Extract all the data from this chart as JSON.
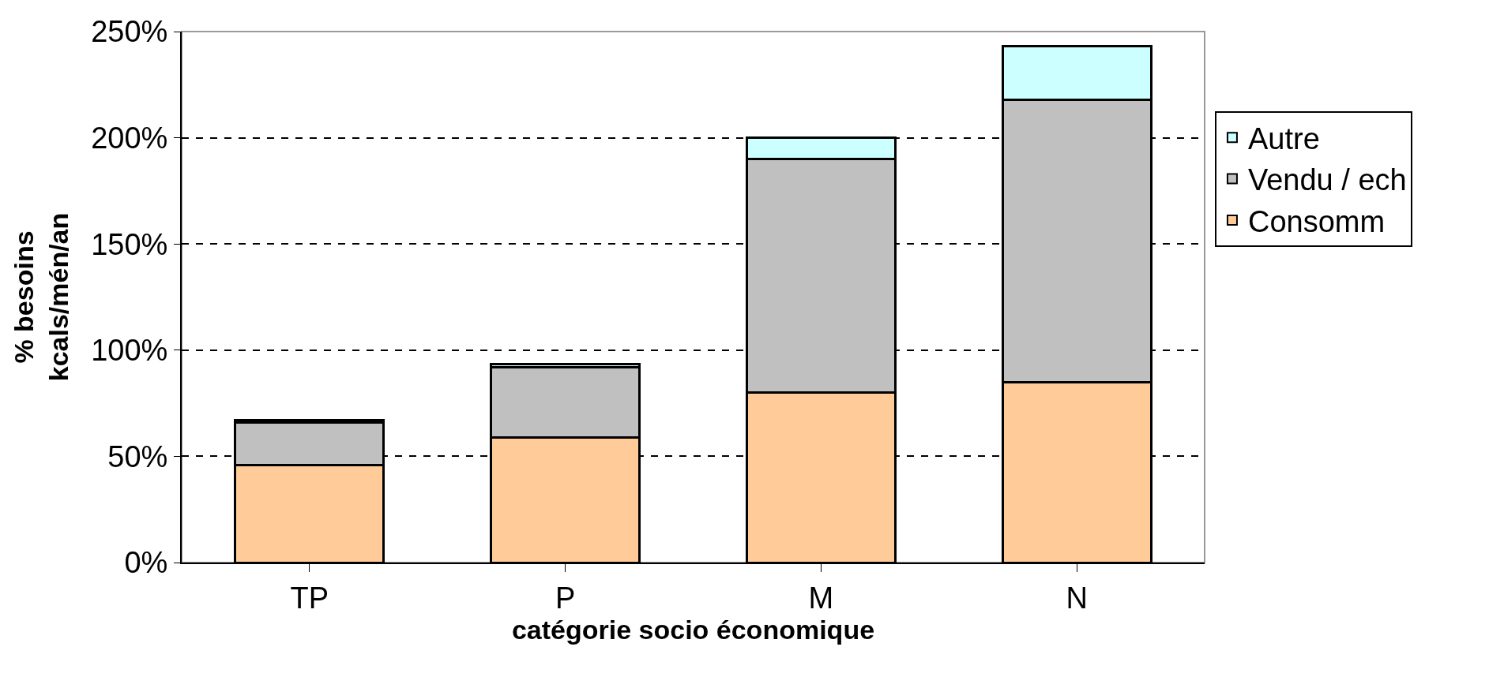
{
  "chart_data": {
    "type": "bar",
    "stacked": true,
    "xlabel": "catégorie socio économique",
    "ylabel": "% besoins\nkcals/mén/an",
    "categories": [
      "TP",
      "P",
      "M",
      "N"
    ],
    "series": [
      {
        "name": "Consomm",
        "color": "#ffcc99",
        "values": [
          46,
          59,
          80,
          85
        ]
      },
      {
        "name": "Vendu / ech",
        "color": "#c0c0c0",
        "values": [
          20,
          33,
          110,
          133
        ]
      },
      {
        "name": "Autre",
        "color": "#ccffff",
        "values": [
          1,
          1.5,
          10,
          25
        ]
      }
    ],
    "ylim": [
      0,
      250
    ],
    "yticks": [
      {
        "value": 0,
        "label": "0%"
      },
      {
        "value": 50,
        "label": "50%"
      },
      {
        "value": 100,
        "label": "100%"
      },
      {
        "value": 150,
        "label": "150%"
      },
      {
        "value": 200,
        "label": "200%"
      },
      {
        "value": 250,
        "label": "250%"
      }
    ],
    "grid": "y",
    "line_style": "dashed",
    "legend": "right"
  }
}
